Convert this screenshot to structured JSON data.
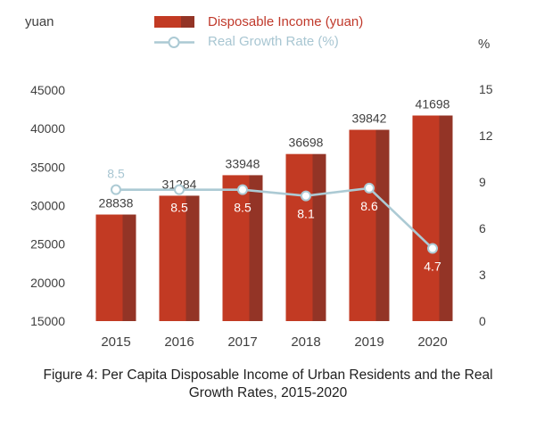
{
  "legend": {
    "bar_label": "Disposable Income (yuan)",
    "line_label": "Real Growth Rate (%)"
  },
  "colors": {
    "bar_main": "#c23a23",
    "bar_shade": "#933426",
    "line": "#accad4",
    "marker_fill": "#ffffff",
    "growth_label_light": "#a8c6d2",
    "growth_label_on_bar": "#ffffff",
    "value_label": "#404040",
    "axis_label": "#404040",
    "legend_bar_text": "#c0392b",
    "legend_line_text": "#a8c6d2",
    "caption_text": "#1f1f1f"
  },
  "chart_data": {
    "type": "bar+line",
    "title": "Figure 4: Per Capita Disposable Income of Urban Residents and the Real Growth Rates, 2015-2020",
    "categories": [
      "2015",
      "2016",
      "2017",
      "2018",
      "2019",
      "2020"
    ],
    "series": [
      {
        "name": "Disposable Income (yuan)",
        "type": "bar",
        "axis": "left",
        "values": [
          28838,
          31284,
          33948,
          36698,
          39842,
          41698
        ]
      },
      {
        "name": "Real Growth Rate (%)",
        "type": "line",
        "axis": "right",
        "values": [
          8.5,
          8.5,
          8.5,
          8.1,
          8.6,
          4.7
        ]
      }
    ],
    "left_axis": {
      "unit": "yuan",
      "min": 15000,
      "max": 45000,
      "step": 5000,
      "ticks": [
        45000,
        40000,
        35000,
        30000,
        25000,
        20000,
        15000
      ]
    },
    "right_axis": {
      "unit": "%",
      "min": 0,
      "max": 15,
      "step": 3,
      "ticks": [
        15,
        12,
        9,
        6,
        3,
        0
      ]
    },
    "grid": false,
    "legend_position": "top"
  }
}
